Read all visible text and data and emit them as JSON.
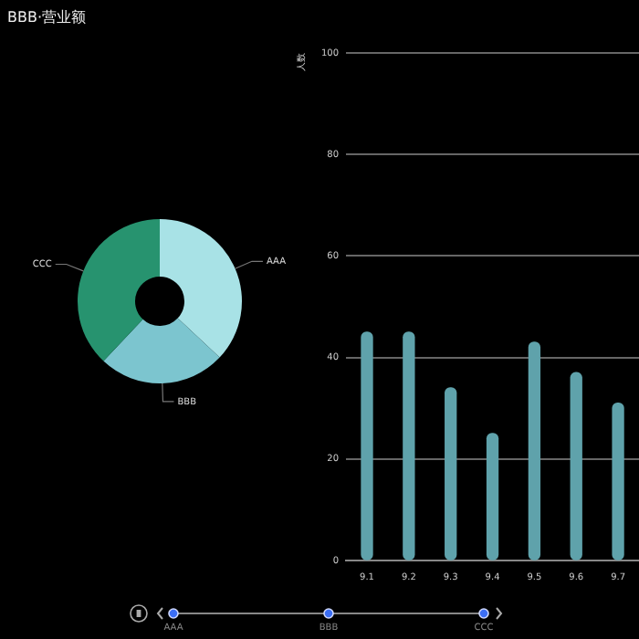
{
  "chart_data": [
    {
      "type": "donut",
      "title": "BBB·营业额",
      "categories": [
        "AAA",
        "BBB",
        "CCC"
      ],
      "values": [
        37,
        25,
        38
      ],
      "colors": [
        "#a8e2e6",
        "#7cc5cf",
        "#27936f"
      ],
      "legend": false
    },
    {
      "type": "bar",
      "ylabel": "人数",
      "categories": [
        "9.1",
        "9.2",
        "9.3",
        "9.4",
        "9.5",
        "9.6",
        "9.7"
      ],
      "values": [
        45,
        45,
        34,
        25,
        43,
        37,
        31
      ],
      "color": "#5fa2ab",
      "ylim": [
        0,
        100
      ],
      "yticks": [
        0,
        20,
        40,
        60,
        80,
        100
      ],
      "grid": "y",
      "legend": false
    },
    {
      "type": "other",
      "categories": [
        "AAA",
        "BBB",
        "CCC"
      ]
    }
  ]
}
